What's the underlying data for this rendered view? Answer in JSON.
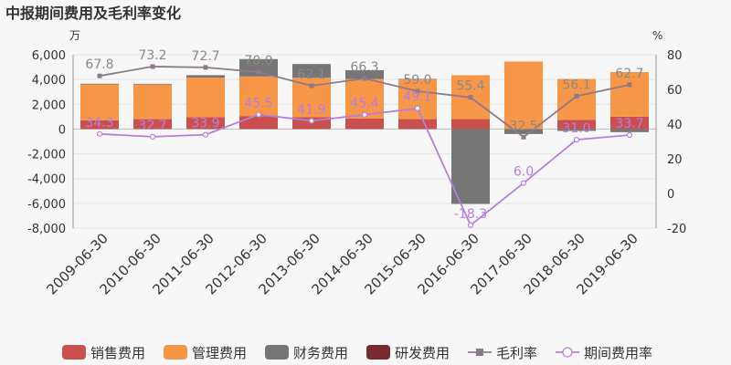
{
  "chart_data": {
    "type": "bar",
    "title": "中报期间费用及毛利率变化",
    "left_unit": "万",
    "right_unit": "%",
    "categories": [
      "2009-06-30",
      "2010-06-30",
      "2011-06-30",
      "2012-06-30",
      "2013-06-30",
      "2014-06-30",
      "2015-06-30",
      "2016-06-30",
      "2017-06-30",
      "2018-06-30",
      "2019-06-30"
    ],
    "left_axis": {
      "ylim": [
        -8000,
        6000
      ],
      "ticks": [
        -8000,
        -6000,
        -4000,
        -2000,
        0,
        2000,
        4000,
        6000
      ],
      "tick_labels": [
        "-8,000",
        "-6,000",
        "-4,000",
        "-2,000",
        "0",
        "2,000",
        "4,000",
        "6,000"
      ]
    },
    "right_axis": {
      "ylim": [
        -20,
        80
      ],
      "ticks": [
        -20,
        0,
        20,
        40,
        60,
        80
      ],
      "tick_labels": [
        "-20",
        "0",
        "20",
        "40",
        "60",
        "80"
      ]
    },
    "bar_series": [
      {
        "name": "销售费用",
        "color": "#c9504e",
        "values": [
          700,
          800,
          950,
          1050,
          950,
          850,
          800,
          800,
          0,
          750,
          1000
        ]
      },
      {
        "name": "管理费用",
        "color": "#f79646",
        "values": [
          2900,
          2800,
          3200,
          3200,
          3200,
          3200,
          3200,
          3550,
          5450,
          3300,
          3600
        ]
      },
      {
        "name": "财务费用",
        "color": "#767676",
        "values": [
          60,
          50,
          200,
          1400,
          1100,
          700,
          50,
          -6050,
          -400,
          -150,
          -250
        ]
      },
      {
        "name": "研发费用",
        "color": "#7a2a2c",
        "values": [
          0,
          0,
          0,
          0,
          0,
          0,
          0,
          0,
          0,
          0,
          0
        ]
      }
    ],
    "line_series": [
      {
        "name": "毛利率",
        "color": "#8c7a8c",
        "values": [
          67.8,
          73.2,
          72.7,
          70.0,
          62.1,
          66.3,
          59.0,
          55.4,
          32.5,
          56.1,
          62.7
        ],
        "labels": [
          "67.8",
          "73.2",
          "72.7",
          "70.0",
          "62.1",
          "66.3",
          "59.0",
          "55.4",
          "32.5",
          "56.1",
          "62.7"
        ]
      },
      {
        "name": "期间费用率",
        "color": "#b57ee0",
        "values": [
          34.3,
          32.7,
          33.9,
          45.5,
          41.9,
          45.4,
          49.1,
          -18.3,
          6.0,
          31.0,
          33.7
        ],
        "labels": [
          "34.3",
          "32.7",
          "33.9",
          "45.5",
          "41.9",
          "45.4",
          "49.1",
          "-18.3",
          "6.0",
          "31.0",
          "33.7"
        ]
      }
    ],
    "legend_position": "bottom"
  }
}
